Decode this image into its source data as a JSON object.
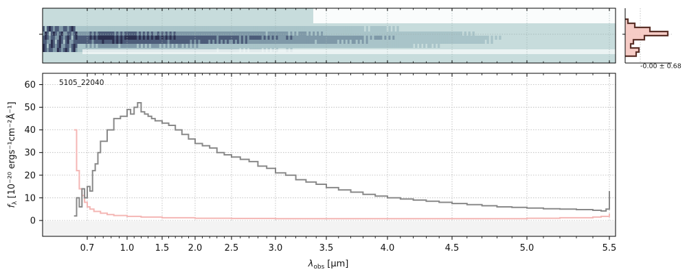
{
  "chart_data": [
    {
      "type": "heatmap",
      "description_role": "2D spectrum cutout",
      "colormap": [
        "#c7dcdc",
        "#a9c4c9",
        "#7f99a8",
        "#4d5d7a",
        "#2c3050"
      ],
      "grid": true
    },
    {
      "type": "line",
      "role": "cross-dispersion profile",
      "annotation": "-0.00 ± 0.68",
      "colors": {
        "profile": "#5a3028",
        "fill": "#f5c6c0"
      }
    },
    {
      "type": "line",
      "label": "5105_22040",
      "xlabel_prefix": "λ",
      "xlabel_sub": "obs",
      "xlabel_unit": "[μm]",
      "ylabel_main": "f",
      "ylabel_sub": "λ",
      "ylabel_unit": "[10⁻²⁰ ergs⁻¹cm⁻²Å⁻¹]",
      "xticks": [
        0.7,
        1.0,
        1.5,
        2.0,
        2.5,
        3.0,
        3.5,
        4.0,
        4.5,
        5.0,
        5.5
      ],
      "xtick_labels": [
        "0.7",
        "1.0",
        "1.5",
        "2.0",
        "2.5",
        "3.0",
        "3.5",
        "4.0",
        "4.5",
        "5.0",
        "5.5"
      ],
      "yticks": [
        0,
        10,
        20,
        30,
        40,
        50,
        60
      ],
      "ytick_labels": [
        "0",
        "10",
        "20",
        "30",
        "40",
        "50",
        "60"
      ],
      "ylim": [
        -7,
        65
      ],
      "grid": true,
      "series": [
        {
          "role": "flux",
          "color": "#888888",
          "x": [
            0.6,
            0.62,
            0.64,
            0.66,
            0.68,
            0.7,
            0.72,
            0.74,
            0.76,
            0.78,
            0.8,
            0.85,
            0.9,
            0.95,
            1.0,
            1.05,
            1.1,
            1.15,
            1.2,
            1.25,
            1.3,
            1.35,
            1.4,
            1.5,
            1.6,
            1.7,
            1.8,
            1.9,
            2.0,
            2.1,
            2.2,
            2.3,
            2.4,
            2.5,
            2.6,
            2.7,
            2.8,
            2.9,
            3.0,
            3.1,
            3.2,
            3.3,
            3.4,
            3.5,
            3.6,
            3.7,
            3.8,
            3.9,
            4.0,
            4.1,
            4.2,
            4.3,
            4.4,
            4.5,
            4.6,
            4.7,
            4.8,
            4.9,
            5.0,
            5.1,
            5.2,
            5.3,
            5.4,
            5.45,
            5.48,
            5.5
          ],
          "y": [
            2,
            10,
            6,
            14,
            10,
            15,
            13,
            22,
            25,
            30,
            35,
            40,
            45,
            46,
            49,
            47,
            50,
            52,
            48,
            47,
            46,
            45,
            44,
            43,
            42,
            40,
            38,
            36,
            34,
            33,
            32,
            30,
            29,
            28,
            27,
            26,
            24,
            23,
            21,
            20,
            18,
            17,
            16,
            14.5,
            13.5,
            12.5,
            11.5,
            10.8,
            10,
            9.5,
            9,
            8.5,
            8,
            7.5,
            7,
            6.5,
            6,
            5.8,
            5.5,
            5.2,
            5,
            4.8,
            4.5,
            4.2,
            5,
            13
          ]
        },
        {
          "role": "uncertainty",
          "color": "#f4b6b4",
          "x": [
            0.6,
            0.62,
            0.64,
            0.66,
            0.68,
            0.7,
            0.72,
            0.75,
            0.8,
            0.85,
            0.9,
            1.0,
            1.2,
            1.5,
            2.0,
            2.5,
            3.0,
            3.5,
            4.0,
            4.5,
            5.0,
            5.2,
            5.4,
            5.45,
            5.5
          ],
          "y": [
            40,
            22,
            14,
            11,
            8,
            6,
            5,
            4,
            3.2,
            2.6,
            2.2,
            1.8,
            1.5,
            1.2,
            1.0,
            0.9,
            0.8,
            0.8,
            0.8,
            0.8,
            1.0,
            1.2,
            1.5,
            1.8,
            3.0
          ]
        }
      ]
    }
  ]
}
